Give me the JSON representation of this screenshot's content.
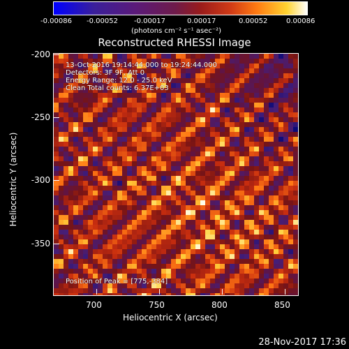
{
  "colorbar": {
    "ticks": [
      "-0.00086",
      "-0.00052",
      "-0.00017",
      "0.00017",
      "0.00052",
      "0.00086"
    ],
    "units": "(photons cm⁻² s⁻¹ asec⁻²)"
  },
  "title": "Reconstructed RHESSI Image",
  "annotations": {
    "time_range": "13-Oct-2016 19:14:44.000 to 19:24:44.000",
    "detectors": "Detectors: 3F 9F, Att 0",
    "energy": "Energy Range: 12.0 - 25.0 keV",
    "clean": "Clean     Total counts: 6.37E+03",
    "peak": "Position of Peak = [775,-384]"
  },
  "axes": {
    "xlabel": "Heliocentric X (arcsec)",
    "ylabel": "Heliocentric Y (arcsec)",
    "xticks": [
      "700",
      "750",
      "800",
      "850"
    ],
    "yticks": [
      "-200",
      "-250",
      "-300",
      "-350"
    ]
  },
  "timestamp": "28-Nov-2017 17:36",
  "colors": {
    "background": "#000000",
    "text": "#ffffff"
  }
}
